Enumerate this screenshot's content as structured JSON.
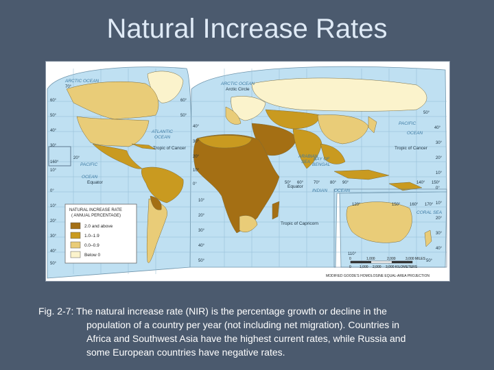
{
  "slide": {
    "title": "Natural Increase Rates"
  },
  "map": {
    "legend": {
      "title_line1": "NATURAL INCREASE RATE",
      "title_line2": "( ANNUAL PERCENTAGE)",
      "classes": [
        {
          "label": "2.0 and above",
          "color": "#a46f14"
        },
        {
          "label": "1.0–1.9",
          "color": "#c99a20"
        },
        {
          "label": "0.0–0.9",
          "color": "#e9cc78"
        },
        {
          "label": "Below 0",
          "color": "#fbf3cc"
        }
      ]
    },
    "ocean_color": "#bfe0f2",
    "labels": {
      "arctic_ocean_left": "ARCTIC OCEAN",
      "arctic_ocean_right": "ARCTIC OCEAN",
      "arctic_circle": "Arctic Circle",
      "atlantic_ocean_l1": "ATLANTIC",
      "atlantic_ocean_l2": "OCEAN",
      "pacific_ocean_left_l1": "PACIFIC",
      "pacific_ocean_left_l2": "OCEAN",
      "pacific_ocean_right_l1": "PACIFIC",
      "pacific_ocean_right_l2": "OCEAN",
      "indian_ocean_l1": "INDIAN",
      "indian_ocean_l2": "OCEAN",
      "arabian_sea_l1": "ARABIAN",
      "arabian_sea_l2": "SEA",
      "bay_of_bengal_l1": "BAY OF",
      "bay_of_bengal_l2": "BENGAL",
      "coral_sea": "CORAL SEA",
      "tropic_cancer_left": "Tropic of Cancer",
      "tropic_cancer_right": "Tropic of Cancer",
      "equator_left": "Equator",
      "equator_right": "Equator",
      "tropic_capricorn": "Tropic of Capricorn",
      "projection": "MODIFIED GOODE'S HOMOLOSINE EQUAL-AREA PROJECTION"
    },
    "lat_labels_left": [
      "70°",
      "60°",
      "50°",
      "40°",
      "30°",
      "20°",
      "10°",
      "0°",
      "10°",
      "20°",
      "30°",
      "40°",
      "50°"
    ],
    "lat_labels_mid": [
      "60°",
      "50°",
      "40°",
      "30°",
      "20°",
      "10°",
      "0°",
      "10°",
      "20°",
      "30°",
      "40°",
      "50°"
    ],
    "lat_labels_right": [
      "50°",
      "40°",
      "30°",
      "20°",
      "10°",
      "0°",
      "10°",
      "20°",
      "30°",
      "40°",
      "50°"
    ],
    "lon_labels_africa": [
      "50°",
      "60°",
      "70°",
      "80°",
      "90°"
    ],
    "lon_labels_oceania": [
      "120°",
      "150°",
      "160°",
      "170°"
    ],
    "lon_labels_asia": [
      "140°",
      "150°"
    ],
    "lon_label_pacific": "160°",
    "lon_label_south": "110°",
    "scale": {
      "miles": [
        "0",
        "1,000",
        "2,000",
        "3,000 MILES"
      ],
      "km": [
        "0",
        "1,000",
        "2,000",
        "3,000 KILOMETERS"
      ]
    }
  },
  "caption": {
    "line1": "Fig. 2-7:  The natural increase rate (NIR) is the percentage growth or decline in the",
    "line2": "population of a country per year (not including net migration).  Countries in",
    "line3": "Africa and Southwest Asia have the highest current rates, while Russia and",
    "line4": "some European countries have negative rates."
  }
}
